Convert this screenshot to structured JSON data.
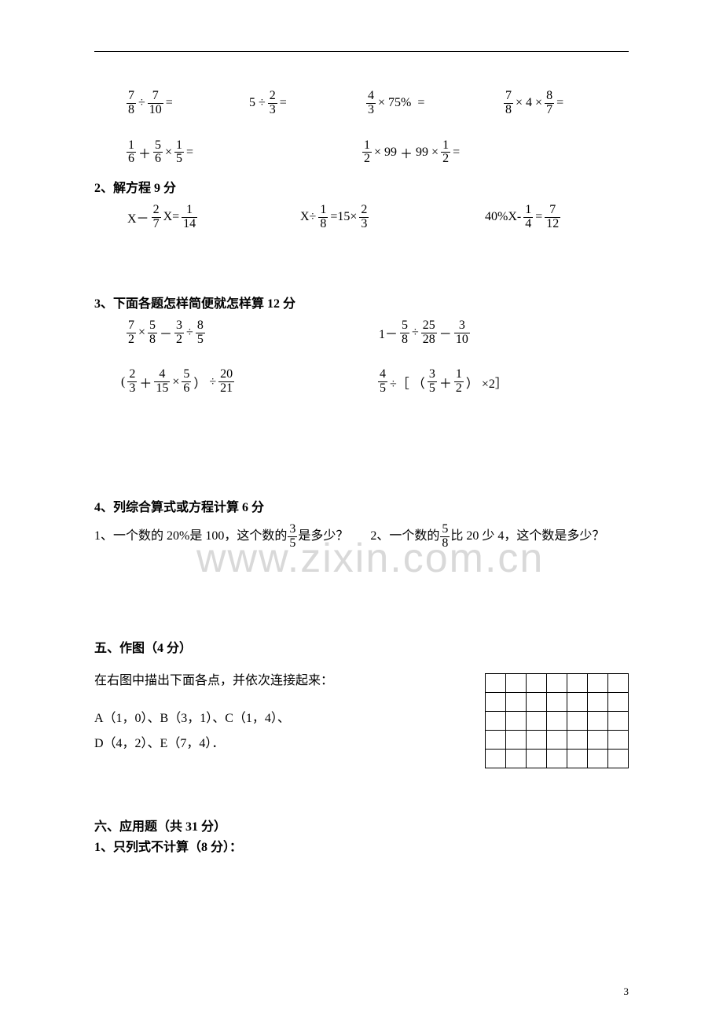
{
  "watermark": "www.zixin.com.cn",
  "page_number": "3",
  "colors": {
    "text": "#000000",
    "bg": "#ffffff",
    "watermark": "#d9d9d9",
    "rule": "#000000"
  },
  "fonts": {
    "body_size_pt": 12,
    "heading_weight": "bold",
    "family": "SimSun"
  },
  "row1": {
    "c1": {
      "f1n": "7",
      "f1d": "8",
      "op": "÷",
      "f2n": "7",
      "f2d": "10",
      "eq": "="
    },
    "c2": {
      "a": "5",
      "op": "÷",
      "fn": "2",
      "fd": "3",
      "eq": "="
    },
    "c3": {
      "fn": "4",
      "fd": "3",
      "op": "×",
      "b": "75%",
      "sp": " ",
      "eq": "="
    },
    "c4": {
      "f1n": "7",
      "f1d": "8",
      "op1": "×",
      "b": "4",
      "op2": "×",
      "f2n": "8",
      "f2d": "7",
      "eq": "="
    }
  },
  "row2": {
    "c1": {
      "f1n": "1",
      "f1d": "6",
      "op1": "＋",
      "f2n": "5",
      "f2d": "6",
      "op2": "×",
      "f3n": "1",
      "f3d": "5",
      "eq": "="
    },
    "c2": {
      "f1n": "1",
      "f1d": "2",
      "op1": "×",
      "a": "99",
      "op2": "＋",
      "b": "99",
      "op3": "×",
      "f2n": "1",
      "f2d": "2",
      "eq": "="
    }
  },
  "h2": "2、解方程 9 分",
  "eq_row": {
    "c1": {
      "pre": "X－",
      "f1n": "2",
      "f1d": "7",
      "mid": "X=",
      "f2n": "1",
      "f2d": "14"
    },
    "c2": {
      "pre": "X÷",
      "f1n": "1",
      "f1d": "8",
      "mid": "=15×",
      "f2n": "2",
      "f2d": "3"
    },
    "c3": {
      "pre": "40%X-",
      "f1n": "1",
      "f1d": "4",
      "mid": "=",
      "f2n": "7",
      "f2d": "12"
    }
  },
  "h3": "3、下面各题怎样简便就怎样算 12 分",
  "simp1": {
    "c1": {
      "f1n": "7",
      "f1d": "2",
      "op1": "×",
      "f2n": "5",
      "f2d": "8",
      "op2": "－",
      "f3n": "3",
      "f3d": "2",
      "op3": "÷",
      "f4n": "8",
      "f4d": "5"
    },
    "c2": {
      "a": "1－",
      "f1n": "5",
      "f1d": "8",
      "op1": "÷",
      "f2n": "25",
      "f2d": "28",
      "op2": "－",
      "f3n": "3",
      "f3d": "10"
    }
  },
  "simp2": {
    "c1": {
      "lp": "(",
      "f1n": "2",
      "f1d": "3",
      "op1": "＋",
      "f2n": "4",
      "f2d": "15",
      "op2": "×",
      "f3n": "5",
      "f3d": "6",
      "rp": "）",
      "op3": "÷",
      "f4n": "20",
      "f4d": "21"
    },
    "c2": {
      "f1n": "4",
      "f1d": "5",
      "op1": "÷［",
      "lp": "（",
      "f2n": "3",
      "f2d": "5",
      "op2": "＋",
      "f3n": "1",
      "f3d": "2",
      "rp": "）",
      "tail": " ×2］"
    }
  },
  "h4": "4、列综合算式或方程计算 6 分",
  "q4": {
    "q1a": "1、一个数的 20%是 100，这个数的",
    "q1fn": "3",
    "q1fd": "5",
    "q1b": "是多少？",
    "q2a": "2、一个数的",
    "q2fn": "5",
    "q2fd": "8",
    "q2b": "比 20 少 4，这个数是多少？"
  },
  "h5": "五、作图（4 分）",
  "s5_intro": "在右图中描出下面各点，并依次连接起来：",
  "s5_pts1": "A（1，0）、B（3，1）、C（1，4）、",
  "s5_pts2": "D（4，2）、E（7，4）．",
  "grid": {
    "rows": 5,
    "cols": 7
  },
  "h6": "六、应用题（共 31 分）",
  "h6b": "1、只列式不计算（8 分）："
}
